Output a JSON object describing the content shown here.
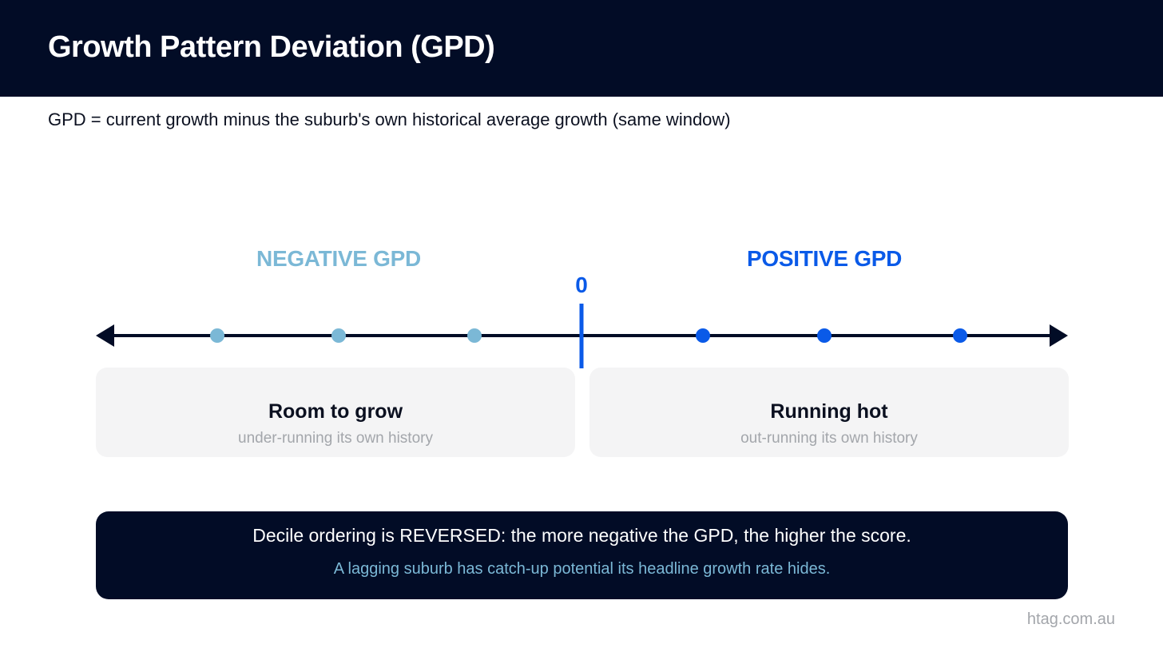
{
  "header": {
    "title": "Growth Pattern Deviation (GPD)"
  },
  "subtitle": "GPD = current growth minus the suburb's own historical average growth (same window)",
  "number_line": {
    "negative_label": "NEGATIVE GPD",
    "positive_label": "POSITIVE GPD",
    "zero_label": "0",
    "negative_dots": 3,
    "positive_dots": 3
  },
  "cards": {
    "left": {
      "title": "Room to grow",
      "subtitle": "under-running its own history"
    },
    "right": {
      "title": "Running hot",
      "subtitle": "out-running its own history"
    }
  },
  "note": {
    "main": "Decile ordering is REVERSED: the more negative the GPD, the higher the score.",
    "sub": "A lagging suburb has catch-up potential its headline growth rate hides."
  },
  "footer": "htag.com.au",
  "colors": {
    "navy": "#020c26",
    "negative": "#7bb8d6",
    "positive": "#0a5ae8",
    "muted": "#a3a6ab",
    "card_bg": "#f4f4f5"
  }
}
